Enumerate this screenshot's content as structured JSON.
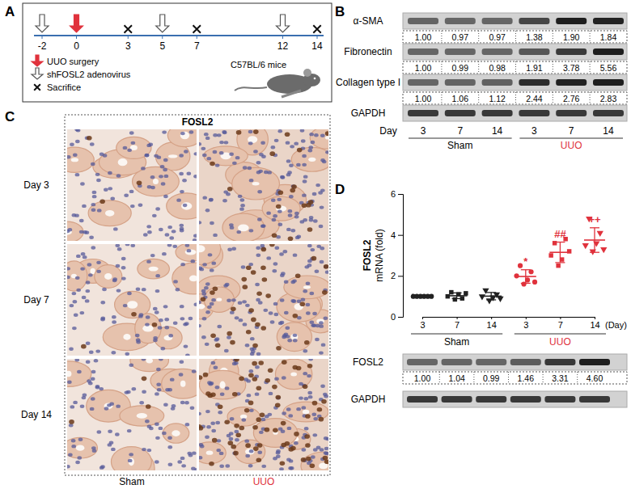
{
  "panel_labels": [
    "A",
    "B",
    "C",
    "D"
  ],
  "timeline": {
    "ticks": [
      -2,
      0,
      3,
      5,
      7,
      12,
      14
    ],
    "animal": "C57BL/6 mice",
    "legend": [
      {
        "text": "UUO surgery",
        "marker": "red-arrow",
        "days": [
          0
        ]
      },
      {
        "text": "shFOSL2 adenovirus",
        "marker": "hollow-arrow",
        "days": [
          -2,
          5,
          12
        ]
      },
      {
        "text": "Sacrifice",
        "marker": "cross",
        "days": [
          3,
          7,
          14
        ]
      }
    ]
  },
  "blot_b": {
    "rows": [
      {
        "protein": "α-SMA",
        "values": [
          1,
          0.97,
          0.97,
          1.38,
          1.9,
          1.84
        ],
        "value_labels": [
          "1.00",
          "0.97",
          "0.97",
          "1.38",
          "1.90",
          "1.84"
        ]
      },
      {
        "protein": "Fibronectin",
        "values": [
          1,
          0.99,
          0.98,
          1.91,
          3.78,
          5.56
        ],
        "value_labels": [
          "1.00",
          "0.99",
          "0.98",
          "1.91",
          "3.78",
          "5.56"
        ]
      },
      {
        "protein": "Collagen type I",
        "values": [
          1,
          1.06,
          1.12,
          2.44,
          2.76,
          2.83
        ],
        "value_labels": [
          "1.00",
          "1.06",
          "1.12",
          "2.44",
          "2.76",
          "2.83"
        ]
      }
    ],
    "loading": "GAPDH",
    "day_label": "Day",
    "days": [
      "3",
      "7",
      "14",
      "3",
      "7",
      "14"
    ],
    "groups": [
      {
        "name": "Sham",
        "color": "#000000",
        "count": 3
      },
      {
        "name": "UUO",
        "color": "#e0323c",
        "count": 3
      }
    ]
  },
  "ihc": {
    "title": "FOSL2",
    "rows": [
      "Day 3",
      "Day 7",
      "Day 14"
    ],
    "columns": [
      {
        "name": "Sham",
        "color": "#000000"
      },
      {
        "name": "UUO",
        "color": "#e0323c"
      }
    ]
  },
  "chart_data": {
    "type": "scatter",
    "y_label": [
      "FOSL2",
      "mRNA (fold)"
    ],
    "x_label": "(Day)",
    "categories": [
      "3",
      "7",
      "14",
      "3",
      "7",
      "14"
    ],
    "groups": [
      {
        "name": "Sham",
        "color": "#000000",
        "count": 3
      },
      {
        "name": "UUO",
        "color": "#e0323c",
        "count": 3
      }
    ],
    "values": [
      [
        1,
        1,
        1,
        1,
        1,
        1
      ],
      [
        1.0,
        1.2,
        0.85,
        1.1,
        0.9,
        1.15
      ],
      [
        1.0,
        1.3,
        0.8,
        0.95,
        1.1,
        0.9
      ],
      [
        2.0,
        2.5,
        1.6,
        1.8,
        2.2,
        1.7
      ],
      [
        3.0,
        3.6,
        2.5,
        2.8,
        3.8,
        3.2
      ],
      [
        3.5,
        4.8,
        3.2,
        3.6,
        4.1,
        3.3
      ]
    ],
    "colors": [
      "#222222",
      "#222222",
      "#222222",
      "#e0323c",
      "#e0323c",
      "#e0323c"
    ],
    "markers": [
      "circle",
      "square",
      "triangle-down",
      "circle",
      "square",
      "triangle-down"
    ],
    "means": [
      1.0,
      1.03,
      1.01,
      1.97,
      3.15,
      3.75
    ],
    "errors": [
      0,
      0.14,
      0.18,
      0.33,
      0.5,
      0.6
    ],
    "annotations": [
      null,
      null,
      null,
      "*",
      "##",
      "++"
    ],
    "ylim": [
      0,
      6
    ],
    "yticks": [
      0,
      2,
      4,
      6
    ]
  },
  "blot_d": {
    "protein": "FOSL2",
    "values": [
      1,
      1.04,
      0.99,
      1.46,
      3.31,
      4.6
    ],
    "value_labels": [
      "1.00",
      "1.04",
      "0.99",
      "1.46",
      "3.31",
      "4.60"
    ],
    "loading": "GAPDH"
  }
}
